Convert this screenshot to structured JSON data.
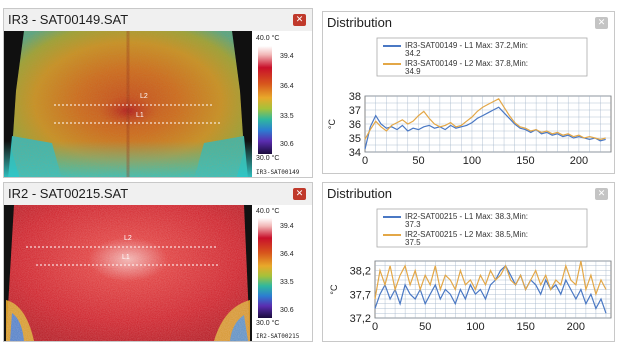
{
  "top": {
    "thermal": {
      "title": "IR3 - SAT00149.SAT",
      "scale_max": "40.0 °C",
      "scale_ticks": [
        "39.4",
        "36.4",
        "33.5",
        "30.6"
      ],
      "scale_min": "30.0 °C",
      "file_label": "IR3-SAT00149",
      "line_labels": [
        "L2",
        "L1"
      ],
      "palette": "warm-body"
    },
    "distribution": {
      "title": "Distribution",
      "legend": [
        "IR3-SAT00149 - L1 Max: 37.2,Min: 34.2",
        "IR3-SAT00149 - L2 Max: 37.8,Min: 34.9"
      ],
      "ylabel": "°C"
    }
  },
  "bottom": {
    "thermal": {
      "title": "IR2 - SAT00215.SAT",
      "scale_max": "40.0 °C",
      "scale_ticks": [
        "39.4",
        "36.4",
        "33.5",
        "30.6"
      ],
      "scale_min": "30.0 °C",
      "file_label": "IR2-SAT00215",
      "line_labels": [
        "L2",
        "L1"
      ],
      "palette": "hot-body"
    },
    "distribution": {
      "title": "Distribution",
      "legend": [
        "IR2-SAT00215 - L1 Max: 38.3,Min: 37.3",
        "IR2-SAT00215 - L2 Max: 38.5,Min: 37.5"
      ],
      "ylabel": "°C"
    }
  },
  "colors": {
    "series_l1": "#4a78c4",
    "series_l2": "#e3a747",
    "close_red": "#c0392b",
    "close_gray": "#c4c4c4"
  },
  "chart_data": [
    {
      "type": "line",
      "title": "Distribution",
      "ylabel": "°C",
      "xlim": [
        0,
        230
      ],
      "ylim": [
        34,
        38
      ],
      "xticks": [
        "0",
        "50",
        "100",
        "150",
        "200"
      ],
      "yticks": [
        "34",
        "35",
        "36",
        "37",
        "38"
      ],
      "grid": true,
      "legend": "top",
      "series": [
        {
          "name": "IR3-SAT00149 - L1 Max: 37.2,Min: 34.2",
          "color": "#4a78c4",
          "x": [
            0,
            5,
            10,
            15,
            20,
            25,
            30,
            35,
            40,
            45,
            50,
            55,
            60,
            65,
            70,
            75,
            80,
            85,
            90,
            95,
            100,
            105,
            110,
            115,
            120,
            125,
            130,
            135,
            140,
            145,
            150,
            155,
            160,
            165,
            170,
            175,
            180,
            185,
            190,
            195,
            200,
            205,
            210,
            215,
            220,
            225
          ],
          "y": [
            34.2,
            35.8,
            36.6,
            36.0,
            35.7,
            35.8,
            35.6,
            35.9,
            35.5,
            35.7,
            35.6,
            35.8,
            35.9,
            35.7,
            35.8,
            35.6,
            35.9,
            35.7,
            35.8,
            35.9,
            36.1,
            36.4,
            36.6,
            36.8,
            37.0,
            37.2,
            36.8,
            36.4,
            36.0,
            35.7,
            35.6,
            35.4,
            35.6,
            35.3,
            35.4,
            35.2,
            35.3,
            35.1,
            35.2,
            35.0,
            35.1,
            35.0,
            34.9,
            35.0,
            34.8,
            34.9
          ]
        },
        {
          "name": "IR3-SAT00149 - L2 Max: 37.8,Min: 34.9",
          "color": "#e3a747",
          "x": [
            0,
            5,
            10,
            15,
            20,
            25,
            30,
            35,
            40,
            45,
            50,
            55,
            60,
            65,
            70,
            75,
            80,
            85,
            90,
            95,
            100,
            105,
            110,
            115,
            120,
            125,
            130,
            135,
            140,
            145,
            150,
            155,
            160,
            165,
            170,
            175,
            180,
            185,
            190,
            195,
            200,
            205,
            210,
            215,
            220,
            225
          ],
          "y": [
            34.9,
            35.6,
            36.2,
            35.8,
            35.5,
            35.9,
            36.1,
            36.3,
            36.0,
            36.2,
            36.6,
            36.9,
            36.4,
            36.0,
            35.8,
            35.9,
            36.1,
            35.8,
            35.9,
            36.2,
            36.5,
            36.9,
            37.2,
            37.4,
            37.6,
            37.8,
            37.2,
            36.6,
            36.1,
            35.8,
            35.7,
            35.5,
            35.6,
            35.4,
            35.5,
            35.3,
            35.4,
            35.2,
            35.3,
            35.1,
            35.2,
            35.0,
            35.1,
            35.0,
            34.9,
            35.0
          ]
        }
      ]
    },
    {
      "type": "line",
      "title": "Distribution",
      "ylabel": "°C",
      "xlim": [
        0,
        235
      ],
      "ylim": [
        37.2,
        38.4
      ],
      "xticks": [
        "0",
        "50",
        "100",
        "150",
        "200"
      ],
      "yticks": [
        "37,2",
        "37,7",
        "38,2"
      ],
      "ytick_values": [
        37.2,
        37.7,
        38.2
      ],
      "grid": true,
      "legend": "top",
      "series": [
        {
          "name": "IR2-SAT00215 - L1 Max: 38.3,Min: 37.3",
          "color": "#4a78c4",
          "x": [
            0,
            5,
            10,
            15,
            20,
            25,
            30,
            35,
            40,
            45,
            50,
            55,
            60,
            65,
            70,
            75,
            80,
            85,
            90,
            95,
            100,
            105,
            110,
            115,
            120,
            125,
            130,
            135,
            140,
            145,
            150,
            155,
            160,
            165,
            170,
            175,
            180,
            185,
            190,
            195,
            200,
            205,
            210,
            215,
            220,
            225,
            230
          ],
          "y": [
            37.4,
            37.7,
            37.9,
            37.6,
            37.8,
            37.5,
            37.9,
            37.7,
            37.6,
            37.8,
            37.5,
            37.7,
            37.9,
            37.6,
            37.8,
            37.7,
            37.5,
            37.8,
            37.6,
            37.9,
            37.7,
            37.8,
            37.6,
            37.9,
            38.0,
            38.2,
            38.3,
            38.1,
            37.9,
            38.1,
            37.8,
            38.0,
            37.9,
            37.7,
            38.0,
            37.8,
            37.9,
            37.7,
            38.0,
            37.8,
            37.6,
            37.8,
            37.5,
            37.7,
            37.4,
            37.6,
            37.3
          ]
        },
        {
          "name": "IR2-SAT00215 - L2 Max: 38.5,Min: 37.5",
          "color": "#e3a747",
          "x": [
            0,
            5,
            10,
            15,
            20,
            25,
            30,
            35,
            40,
            45,
            50,
            55,
            60,
            65,
            70,
            75,
            80,
            85,
            90,
            95,
            100,
            105,
            110,
            115,
            120,
            125,
            130,
            135,
            140,
            145,
            150,
            155,
            160,
            165,
            170,
            175,
            180,
            185,
            190,
            195,
            200,
            205,
            210,
            215,
            220,
            225,
            230
          ],
          "y": [
            37.6,
            38.2,
            37.9,
            38.3,
            37.8,
            38.1,
            38.3,
            37.9,
            38.2,
            37.8,
            38.1,
            37.9,
            38.3,
            37.8,
            38.1,
            38.0,
            37.8,
            38.2,
            37.9,
            38.0,
            37.8,
            38.1,
            37.9,
            38.2,
            38.0,
            38.1,
            38.3,
            38.0,
            37.9,
            38.1,
            37.8,
            38.0,
            38.2,
            37.9,
            38.1,
            37.8,
            38.0,
            37.9,
            38.3,
            38.0,
            37.9,
            38.4,
            37.8,
            38.1,
            37.7,
            38.0,
            37.8
          ]
        }
      ]
    }
  ]
}
